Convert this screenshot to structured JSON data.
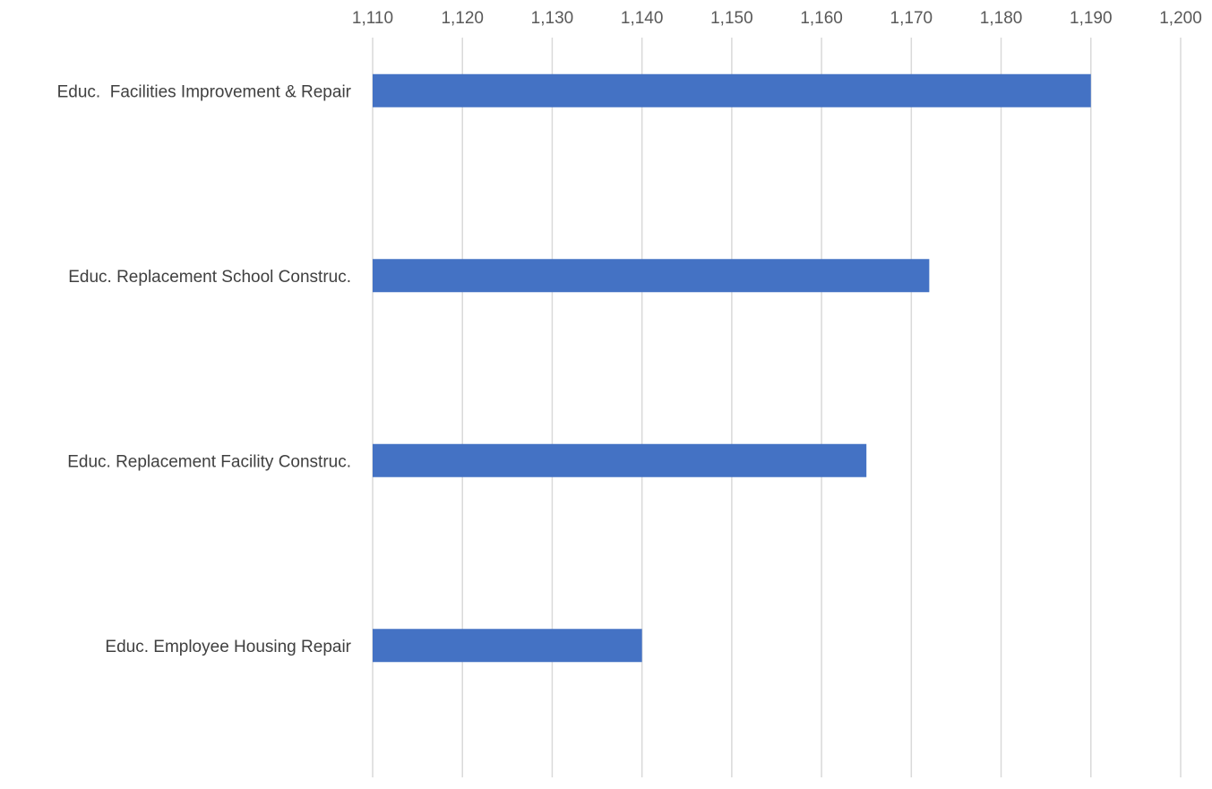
{
  "chart_data": {
    "type": "bar",
    "orientation": "horizontal",
    "categories": [
      "Educ.  Facilities Improvement & Repair",
      "Educ. Replacement School Construc.",
      "Educ. Replacement Facility Construc.",
      "Educ. Employee Housing Repair"
    ],
    "values": [
      1190,
      1172,
      1165,
      1140
    ],
    "xlim": [
      1110,
      1200
    ],
    "x_ticks": [
      "1,110",
      "1,120",
      "1,130",
      "1,140",
      "1,150",
      "1,160",
      "1,170",
      "1,180",
      "1,190",
      "1,200"
    ],
    "x_tick_values": [
      1110,
      1120,
      1130,
      1140,
      1150,
      1160,
      1170,
      1180,
      1190,
      1200
    ],
    "axis_position": "top",
    "grid": true,
    "legend": "none",
    "bar_color": "#4472C4"
  }
}
